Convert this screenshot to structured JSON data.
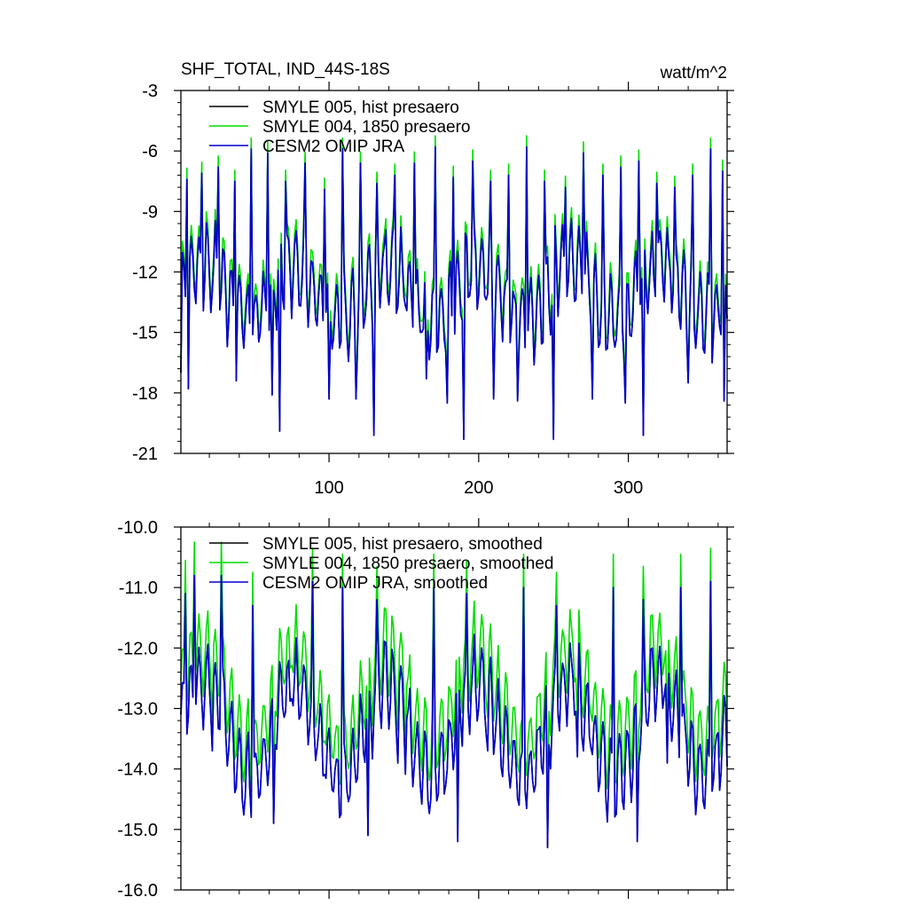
{
  "chart_data": [
    {
      "type": "line",
      "title": "SHF_TOTAL, IND_44S-18S",
      "units": "watt/m^2",
      "xlim": [
        1,
        366
      ],
      "ylim": [
        -21,
        -3
      ],
      "x_ticks": [
        100,
        200,
        300
      ],
      "x_tick_labels": [
        "100",
        "200",
        "300"
      ],
      "y_ticks": [
        -21,
        -18,
        -15,
        -12,
        -9,
        -6,
        -3
      ],
      "y_tick_labels": [
        "-21",
        "-18",
        "-15",
        "-12",
        "-9",
        "-6",
        "-3"
      ],
      "legend": "top-left",
      "series_shape": {
        "length": 366,
        "period": 5.4,
        "seasonal_period": 61,
        "seasonal_amplitude": 1.4,
        "peaks": [
          [
            5,
            -7.4
          ],
          [
            15,
            -7.1
          ],
          [
            26,
            -6.8
          ],
          [
            37,
            -7.5
          ],
          [
            48,
            -5.9
          ],
          [
            59,
            -6.1
          ],
          [
            71,
            -7.5
          ],
          [
            84,
            -6.6
          ],
          [
            97,
            -7.9
          ],
          [
            109,
            -5.9
          ],
          [
            121,
            -6.6
          ],
          [
            132,
            -7.6
          ],
          [
            144,
            -7.2
          ],
          [
            157,
            -6.6
          ],
          [
            171,
            -5.8
          ],
          [
            183,
            -7.3
          ],
          [
            196,
            -6.5
          ],
          [
            208,
            -7.5
          ],
          [
            220,
            -7.2
          ],
          [
            232,
            -5.8
          ],
          [
            244,
            -7.5
          ],
          [
            258,
            -7.8
          ],
          [
            270,
            -6.1
          ],
          [
            283,
            -7.2
          ],
          [
            295,
            -6.8
          ],
          [
            307,
            -6.5
          ],
          [
            319,
            -7.6
          ],
          [
            331,
            -7.8
          ],
          [
            343,
            -7.2
          ],
          [
            355,
            -5.9
          ],
          [
            363,
            -7.0
          ]
        ],
        "troughs": [
          [
            1,
            -17.0
          ],
          [
            6,
            -17.8
          ],
          [
            38,
            -17.4
          ],
          [
            62,
            -18.1
          ],
          [
            67,
            -19.9
          ],
          [
            100,
            -18.3
          ],
          [
            118,
            -18.3
          ],
          [
            130,
            -20.1
          ],
          [
            165,
            -17.3
          ],
          [
            179,
            -18.5
          ],
          [
            190,
            -20.3
          ],
          [
            210,
            -18.3
          ],
          [
            226,
            -18.4
          ],
          [
            250,
            -20.3
          ],
          [
            276,
            -18.3
          ],
          [
            298,
            -18.5
          ],
          [
            310,
            -20.1
          ],
          [
            340,
            -17.5
          ],
          [
            364,
            -18.4
          ]
        ]
      },
      "series": [
        {
          "name": "SMYLE 005, hist presaero",
          "color": "#000000"
        },
        {
          "name": "SMYLE 004, 1850 presaero",
          "color": "#00dd00",
          "offset": 0.55
        },
        {
          "name": "CESM2 OMIP JRA",
          "color": "#0000cc"
        }
      ]
    },
    {
      "type": "line",
      "xlim": [
        1,
        366
      ],
      "ylim": [
        -16.0,
        -10.0
      ],
      "x_ticks": [
        100,
        200,
        300
      ],
      "y_ticks": [
        -16.0,
        -15.0,
        -14.0,
        -13.0,
        -12.0,
        -11.0,
        -10.0
      ],
      "y_tick_labels": [
        "-16.0",
        "-15.0",
        "-14.0",
        "-13.0",
        "-12.0",
        "-11.0",
        "-10.0"
      ],
      "legend": "top-left",
      "series_shape": {
        "length": 366,
        "period": 5.4,
        "seasonal_period": 61,
        "seasonal_amplitude": 0.8,
        "peaks": [
          [
            4,
            -11.1
          ],
          [
            10,
            -10.8
          ],
          [
            28,
            -10.8
          ],
          [
            49,
            -11.3
          ],
          [
            89,
            -10.9
          ],
          [
            109,
            -11.0
          ],
          [
            132,
            -11.2
          ],
          [
            170,
            -11.0
          ],
          [
            192,
            -11.1
          ],
          [
            230,
            -11.0
          ],
          [
            252,
            -11.3
          ],
          [
            290,
            -11.0
          ],
          [
            310,
            -11.2
          ],
          [
            335,
            -11.0
          ],
          [
            355,
            -10.9
          ]
        ],
        "troughs": [
          [
            1,
            -13.1
          ],
          [
            22,
            -13.7
          ],
          [
            63,
            -14.9
          ],
          [
            86,
            -13.6
          ],
          [
            126,
            -15.1
          ],
          [
            146,
            -13.9
          ],
          [
            186,
            -15.2
          ],
          [
            206,
            -13.7
          ],
          [
            246,
            -15.3
          ],
          [
            266,
            -13.8
          ],
          [
            306,
            -15.2
          ],
          [
            326,
            -13.9
          ],
          [
            360,
            -13.4
          ]
        ]
      },
      "series": [
        {
          "name": "SMYLE 005, hist presaero, smoothed",
          "color": "#000000"
        },
        {
          "name": "SMYLE 004, 1850 presaero, smoothed",
          "color": "#00dd00",
          "offset": 0.55
        },
        {
          "name": "CESM2 OMIP JRA, smoothed",
          "color": "#0000cc"
        }
      ]
    }
  ]
}
